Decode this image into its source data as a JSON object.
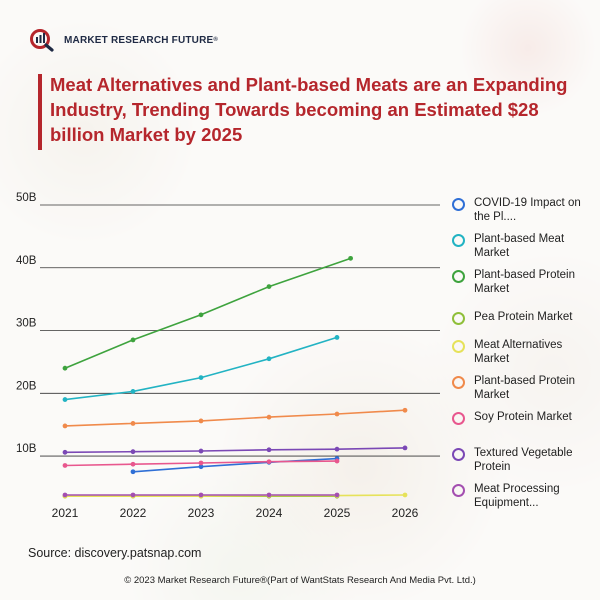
{
  "brand": {
    "name": "MARKET RESEARCH FUTURE",
    "reg": "®"
  },
  "headline": "Meat Alternatives and Plant-based Meats are an Expanding Industry, Trending Towards becoming an Estimated $28 billion Market by 2025",
  "source": "Source: discovery.patsnap.com",
  "footer": "© 2023 Market Research Future®(Part of WantStats Research And Media Pvt. Ltd.)",
  "colors": {
    "accent": "#b5262c",
    "brand_dark": "#1f2a44"
  },
  "chart_data": {
    "type": "line",
    "title": "",
    "xlabel": "",
    "ylabel": "",
    "x": [
      2021,
      2022,
      2023,
      2024,
      2025,
      2026
    ],
    "x_tick_labels": [
      "2021",
      "2022",
      "2023",
      "2024",
      "2025",
      "2026"
    ],
    "y_tick_labels": [
      "10B",
      "20B",
      "30B",
      "40B",
      "50B"
    ],
    "y_ticks": [
      10,
      20,
      30,
      40,
      50
    ],
    "ylim": [
      3,
      50
    ],
    "grid": "horizontal",
    "legend_position": "right",
    "series": [
      {
        "name": "COVID-19 Impact on the Pl....",
        "color": "#2f6fd6",
        "x": [
          2022,
          2023,
          2024,
          2025
        ],
        "values": [
          7.5,
          8.3,
          9.0,
          9.6
        ]
      },
      {
        "name": "Plant-based Meat Market",
        "color": "#22b3c3",
        "x": [
          2021,
          2022,
          2023,
          2024,
          2025
        ],
        "values": [
          19.0,
          20.3,
          22.5,
          25.5,
          28.9
        ]
      },
      {
        "name": "Plant-based Protein Market",
        "color": "#3ea33e",
        "x": [
          2021,
          2022,
          2023,
          2024,
          2025.2
        ],
        "values": [
          24.0,
          28.5,
          32.5,
          37.0,
          41.5
        ]
      },
      {
        "name": "Pea Protein Market",
        "color": "#8fbf3a",
        "x": [
          2021,
          2022,
          2023,
          2024,
          2025
        ],
        "values": [
          3.6,
          3.6,
          3.6,
          3.6,
          3.6
        ]
      },
      {
        "name": "Meat Alternatives Market",
        "color": "#e6e25a",
        "x": [
          2021,
          2022,
          2023,
          2024,
          2025,
          2026
        ],
        "values": [
          3.6,
          3.6,
          3.6,
          3.7,
          3.7,
          3.8
        ]
      },
      {
        "name": "Plant-based Protein Market",
        "color": "#f08a4b",
        "x": [
          2021,
          2022,
          2023,
          2024,
          2025,
          2026
        ],
        "values": [
          14.8,
          15.2,
          15.6,
          16.2,
          16.7,
          17.3
        ]
      },
      {
        "name": "Soy Protein Market",
        "color": "#e8578e",
        "x": [
          2021,
          2022,
          2023,
          2024,
          2025
        ],
        "values": [
          8.5,
          8.7,
          8.9,
          9.1,
          9.2
        ]
      },
      {
        "name": "Textured Vegetable Protein",
        "color": "#7b48b5",
        "x": [
          2021,
          2022,
          2023,
          2024,
          2025,
          2026
        ],
        "values": [
          10.6,
          10.7,
          10.8,
          11.0,
          11.1,
          11.3
        ]
      },
      {
        "name": "Meat Processing Equipment...",
        "color": "#a44fb0",
        "x": [
          2021,
          2022,
          2023,
          2024,
          2025
        ],
        "values": [
          3.8,
          3.8,
          3.8,
          3.8,
          3.8
        ]
      }
    ]
  }
}
